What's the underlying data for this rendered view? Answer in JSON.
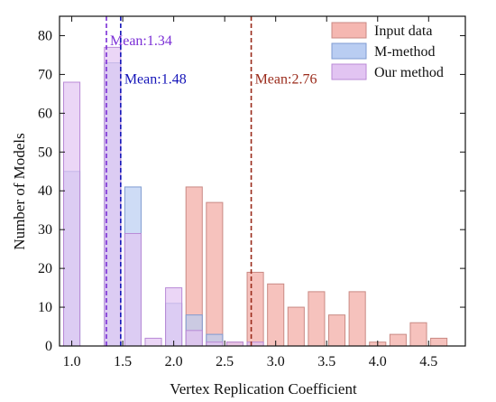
{
  "chart_data": {
    "type": "bar",
    "title": "",
    "xlabel": "Vertex Replication Coefficient",
    "ylabel": "Number of Models",
    "xlim": [
      0.88,
      4.86
    ],
    "ylim": [
      0,
      85
    ],
    "grid": false,
    "legend_position": "top-right",
    "xticks": [
      {
        "value": 1.0,
        "label": "1.0"
      },
      {
        "value": 1.5,
        "label": "1.5"
      },
      {
        "value": 2.0,
        "label": "2.0"
      },
      {
        "value": 2.5,
        "label": "2.5"
      },
      {
        "value": 3.0,
        "label": "3.0"
      },
      {
        "value": 3.5,
        "label": "3.5"
      },
      {
        "value": 4.0,
        "label": "4.0"
      },
      {
        "value": 4.5,
        "label": "4.5"
      }
    ],
    "yticks": [
      {
        "value": 0,
        "label": "0"
      },
      {
        "value": 10,
        "label": "10"
      },
      {
        "value": 20,
        "label": "20"
      },
      {
        "value": 30,
        "label": "30"
      },
      {
        "value": 40,
        "label": "40"
      },
      {
        "value": 50,
        "label": "50"
      },
      {
        "value": 60,
        "label": "60"
      },
      {
        "value": 70,
        "label": "70"
      },
      {
        "value": 80,
        "label": "80"
      }
    ],
    "bar_width": 0.16,
    "series": [
      {
        "name": "Input data",
        "fill": "#f5b7b1",
        "stroke": "#c98a84",
        "x": [
          2.2,
          2.4,
          2.6,
          2.8,
          3.0,
          3.2,
          3.4,
          3.6,
          3.8,
          4.0,
          4.2,
          4.4,
          4.6
        ],
        "values": [
          41,
          37,
          1,
          19,
          16,
          10,
          14,
          8,
          14,
          1,
          3,
          6,
          2
        ]
      },
      {
        "name": "M-method",
        "fill": "#b9cdf2",
        "stroke": "#7f9bd1",
        "x": [
          1.0,
          1.4,
          1.6,
          2.0,
          2.2,
          2.4
        ],
        "values": [
          45,
          73,
          41,
          11,
          8,
          3
        ]
      },
      {
        "name": "Our method",
        "fill": "#e2c4f2",
        "stroke": "#b98ad6",
        "x": [
          1.0,
          1.4,
          1.6,
          1.8,
          2.0,
          2.2,
          2.4,
          2.6,
          2.8
        ],
        "values": [
          68,
          77,
          29,
          2,
          15,
          4,
          1,
          1,
          1
        ]
      }
    ],
    "mean_lines": [
      {
        "label": "Mean:1.34",
        "value": 1.34,
        "color": "#7b2fd6",
        "label_y": 79
      },
      {
        "label": "Mean:1.48",
        "value": 1.48,
        "color": "#1414b8",
        "label_y": 69
      },
      {
        "label": "Mean:2.76",
        "value": 2.76,
        "color": "#9a2a1a",
        "label_y": 69
      }
    ]
  }
}
